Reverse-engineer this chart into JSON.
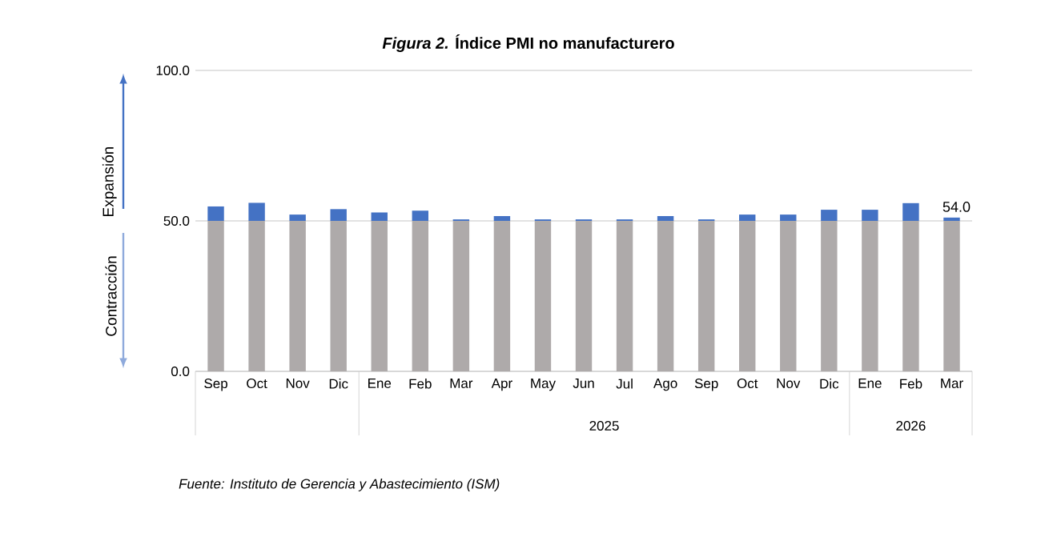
{
  "chart_data": {
    "type": "bar",
    "title": "*Figura 2.* Índice PMI no manufacturero",
    "categories": [
      "Sep",
      "Oct",
      "Nov",
      "Dic",
      "Ene",
      "Feb",
      "Mar",
      "Apr",
      "May",
      "Jun",
      "Jul",
      "Ago",
      "Sep",
      "Oct",
      "Nov",
      "Dic",
      "Ene",
      "Feb",
      "Mar"
    ],
    "stacked": true,
    "series": [
      {
        "color": "#aeaaaa",
        "values": [
          50,
          50,
          50,
          50,
          50,
          50,
          50,
          50,
          50,
          50,
          50,
          50,
          50,
          50,
          50,
          50,
          50,
          50,
          50
        ]
      },
      {
        "color": "#4472c4",
        "values": [
          4.8,
          6.0,
          2.1,
          3.9,
          2.8,
          3.4,
          0.5,
          1.6,
          0.5,
          0.5,
          0.5,
          1.6,
          0.5,
          2.1,
          2.1,
          3.7,
          3.7,
          5.9,
          1.1
        ]
      }
    ],
    "ylim": [
      0,
      100
    ],
    "yticks": [
      {
        "value": 0,
        "label": "0.0"
      },
      {
        "value": 50,
        "label": "50.0"
      },
      {
        "value": 100,
        "label": "100.0"
      }
    ],
    "grid": "y",
    "annotations": [
      "Expansión",
      "Contracción",
      "2025",
      "2026",
      "54.0",
      "Fuente: Instituto de Gerencia y Abastecimiento (ISM)"
    ]
  }
}
